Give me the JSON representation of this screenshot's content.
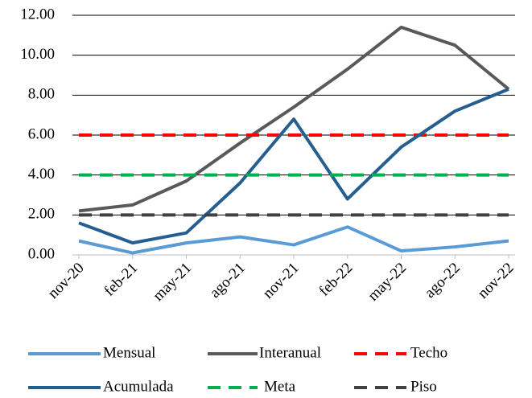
{
  "chart_data": {
    "type": "line",
    "categories": [
      "nov-20",
      "feb-21",
      "may-21",
      "ago-21",
      "nov-21",
      "feb-22",
      "may-22",
      "ago-22",
      "nov-22"
    ],
    "series": [
      {
        "name": "Mensual",
        "color": "#5b9bd5",
        "dashed": false,
        "values": [
          0.7,
          0.1,
          0.6,
          0.9,
          0.5,
          1.4,
          0.2,
          0.4,
          0.7
        ]
      },
      {
        "name": "Interanual",
        "color": "#595959",
        "dashed": false,
        "values": [
          2.2,
          2.5,
          3.7,
          5.6,
          7.4,
          9.3,
          11.4,
          10.5,
          8.3
        ]
      },
      {
        "name": "Techo",
        "color": "#ff0000",
        "dashed": true,
        "values": [
          6,
          6,
          6,
          6,
          6,
          6,
          6,
          6,
          6
        ]
      },
      {
        "name": "Acumulada",
        "color": "#255e91",
        "dashed": false,
        "values": [
          1.6,
          0.6,
          1.1,
          3.6,
          6.8,
          2.8,
          5.4,
          7.2,
          8.3
        ]
      },
      {
        "name": "Meta",
        "color": "#00b050",
        "dashed": true,
        "values": [
          4,
          4,
          4,
          4,
          4,
          4,
          4,
          4,
          4
        ]
      },
      {
        "name": "Piso",
        "color": "#404040",
        "dashed": true,
        "values": [
          2,
          2,
          2,
          2,
          2,
          2,
          2,
          2,
          2
        ]
      }
    ],
    "ylim": [
      0,
      12
    ],
    "yticks": [
      {
        "value": 0,
        "label": "0.00"
      },
      {
        "value": 2,
        "label": "2.00"
      },
      {
        "value": 4,
        "label": "4.00"
      },
      {
        "value": 6,
        "label": "6.00"
      },
      {
        "value": 8,
        "label": "8.00"
      },
      {
        "value": 10,
        "label": "10.00"
      },
      {
        "value": 12,
        "label": "12.00"
      }
    ],
    "grid": true,
    "legend": "bottom"
  }
}
